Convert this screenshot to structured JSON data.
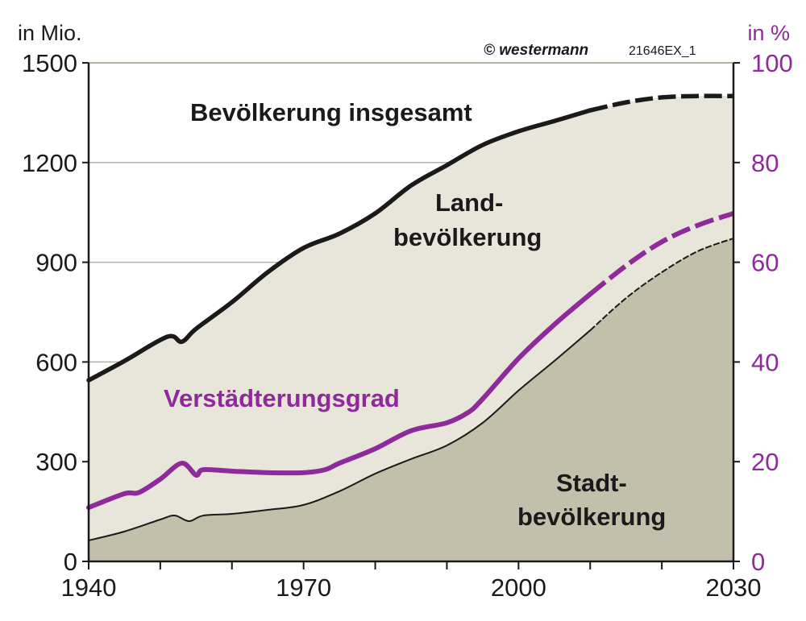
{
  "chart_data": {
    "type": "area",
    "left_axis_unit": "in Mio.",
    "right_axis_unit": "in %",
    "copyright": "© westermann",
    "figure_code": "21646EX_1",
    "xlim": [
      1940,
      2030
    ],
    "ylim_left": [
      0,
      1500
    ],
    "ylim_right": [
      0,
      100
    ],
    "x_ticks": [
      1940,
      1950,
      1960,
      1970,
      1980,
      1990,
      2000,
      2010,
      2020,
      2030
    ],
    "x_tick_labels": [
      "1940",
      "1970",
      "2000",
      "2030"
    ],
    "y_left_ticks": [
      "0",
      "300",
      "600",
      "900",
      "1200",
      "1500"
    ],
    "y_right_ticks": [
      "0",
      "20",
      "40",
      "60",
      "80",
      "100"
    ],
    "grid": true,
    "projection_from": 2010,
    "labels": {
      "total": "Bevölkerung insgesamt",
      "rural_1": "Land-",
      "rural_2": "bevölkerung",
      "urbanization": "Verstädterungsgrad",
      "urban_1": "Stadt-",
      "urban_2": "bevölkerung"
    },
    "colors": {
      "rural_fill": "#e8e5da",
      "urban_fill": "#c2bfaa",
      "total_line": "#1a1a1a",
      "urbanization_line": "#8e2a9a",
      "grid": "#b5b2a5"
    },
    "series": [
      {
        "name": "Bevölkerung insgesamt",
        "axis": "left",
        "x": [
          1940,
          1945,
          1951,
          1953,
          1955,
          1960,
          1965,
          1970,
          1975,
          1980,
          1985,
          1990,
          1995,
          2000,
          2005,
          2010,
          2015,
          2020,
          2025,
          2030
        ],
        "values": [
          545,
          603,
          676,
          661,
          700,
          780,
          870,
          943,
          986,
          1047,
          1131,
          1192,
          1253,
          1294,
          1325,
          1357,
          1381,
          1396,
          1400,
          1400
        ]
      },
      {
        "name": "Stadtbevölkerung",
        "axis": "left",
        "x": [
          1940,
          1945,
          1950,
          1952,
          1954,
          1956,
          1960,
          1965,
          1970,
          1975,
          1980,
          1985,
          1990,
          1995,
          2000,
          2005,
          2010,
          2015,
          2020,
          2025,
          2030
        ],
        "values": [
          63,
          90,
          126,
          138,
          121,
          138,
          143,
          155,
          170,
          211,
          264,
          308,
          349,
          417,
          514,
          603,
          695,
          792,
          870,
          933,
          972
        ]
      },
      {
        "name": "Verstädterungsgrad",
        "axis": "right",
        "x": [
          1940,
          1945,
          1947,
          1950,
          1953,
          1955,
          1956,
          1960,
          1965,
          1970,
          1973,
          1975,
          1980,
          1985,
          1990,
          1993,
          1995,
          2000,
          2005,
          2010,
          2015,
          2020,
          2025,
          2030
        ],
        "values": [
          10.8,
          13.6,
          13.8,
          16.5,
          19.7,
          17.3,
          18.4,
          18.1,
          17.8,
          17.8,
          18.4,
          19.7,
          22.6,
          26.2,
          27.8,
          29.9,
          32.6,
          40.7,
          47.5,
          53.6,
          59.3,
          64.1,
          67.4,
          69.8
        ]
      }
    ]
  }
}
